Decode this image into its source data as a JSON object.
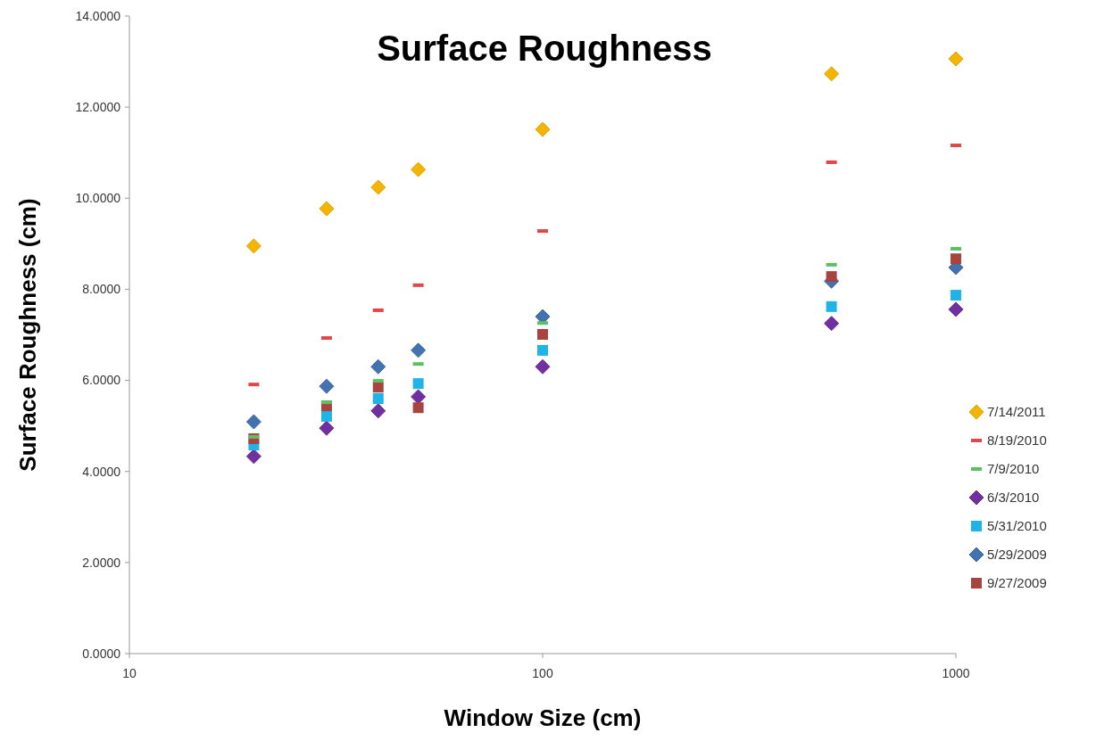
{
  "chart_data": {
    "type": "scatter",
    "title": "Surface Roughness",
    "xlabel": "Window Size (cm)",
    "ylabel": "Surface Roughness (cm)",
    "log": "x",
    "x": [
      20,
      30,
      40,
      50,
      100,
      500,
      1000
    ],
    "xlim": [
      10,
      1000
    ],
    "xticks": [
      10,
      100,
      1000
    ],
    "ylim": [
      0,
      14
    ],
    "yticks": [
      {
        "value": 0,
        "label": "0.0000"
      },
      {
        "value": 2,
        "label": "2.0000"
      },
      {
        "value": 4,
        "label": "4.0000"
      },
      {
        "value": 6,
        "label": "6.0000"
      },
      {
        "value": 8,
        "label": "8.0000"
      },
      {
        "value": 10,
        "label": "10.0000"
      },
      {
        "value": 12,
        "label": "12.0000"
      },
      {
        "value": 14,
        "label": "14.0000"
      }
    ],
    "grid": false,
    "legend": "right",
    "series": [
      {
        "name": "7/14/2011",
        "color": "#f5b400",
        "marker": "diamond",
        "values": [
          8.95,
          9.77,
          10.24,
          10.63,
          11.51,
          12.73,
          13.06
        ]
      },
      {
        "name": "8/19/2010",
        "color": "#e04848",
        "values": [
          5.91,
          6.93,
          7.54,
          8.09,
          9.28,
          10.79,
          11.16
        ]
      },
      {
        "name": "7/9/2010",
        "color": "#5cc060",
        "values": [
          4.76,
          5.52,
          5.99,
          6.36,
          7.26,
          8.54,
          8.89
        ]
      },
      {
        "name": "6/3/2010",
        "color": "#7030a0",
        "marker": "diamond",
        "values": [
          4.33,
          4.95,
          5.33,
          5.64,
          6.3,
          7.25,
          7.56
        ]
      },
      {
        "name": "5/31/2010",
        "color": "#1fb4e8",
        "marker": "square",
        "values": [
          4.58,
          5.21,
          5.6,
          5.93,
          6.66,
          7.62,
          7.87
        ]
      },
      {
        "name": "5/29/2009",
        "color": "#4272b0",
        "marker": "diamond",
        "values": [
          5.09,
          5.87,
          6.3,
          6.66,
          7.4,
          8.18,
          8.48
        ]
      },
      {
        "name": "9/27/2009",
        "color": "#a84440",
        "marker": "square",
        "values": [
          4.72,
          5.44,
          5.85,
          5.4,
          7.01,
          8.28,
          8.67
        ]
      }
    ]
  }
}
